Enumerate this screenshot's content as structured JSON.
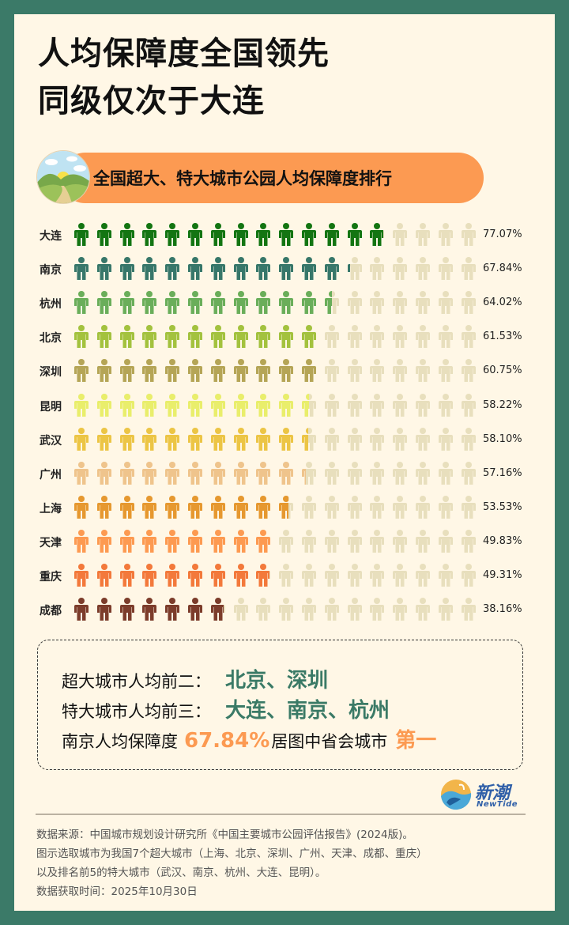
{
  "colors": {
    "frame": "#3b7a68",
    "background": "#fff7e6",
    "accent_orange": "#fc9a52",
    "accent_green": "#3a7a66",
    "empty_icon": "#e8dfbd"
  },
  "title": {
    "line1": "人均保障度全国领先",
    "line2": "同级仅次于大连"
  },
  "section_header": {
    "text": "全国超大、特大城市公园人均保障度排行",
    "badge_icon": "landscape-illustration-icon"
  },
  "chart_data": {
    "type": "pictogram-bar",
    "title": "全国超大、特大城市公园人均保障度排行",
    "icon": "person-icon",
    "icons_per_row": 18,
    "unit": "%",
    "xlim": [
      0,
      100
    ],
    "categories": [
      "大连",
      "南京",
      "杭州",
      "北京",
      "深圳",
      "昆明",
      "武汉",
      "广州",
      "上海",
      "天津",
      "重庆",
      "成都"
    ],
    "values": [
      77.07,
      67.84,
      64.02,
      61.53,
      60.75,
      58.22,
      58.1,
      57.16,
      53.53,
      49.83,
      49.31,
      38.16
    ],
    "labels": [
      "77.07%",
      "67.84%",
      "64.02%",
      "61.53%",
      "60.75%",
      "58.22%",
      "58.10%",
      "57.16%",
      "53.53%",
      "49.83%",
      "49.31%",
      "38.16%"
    ],
    "row_colors": [
      "#137512",
      "#37776a",
      "#6aae5a",
      "#a3c23e",
      "#b5a556",
      "#e9ee6b",
      "#ecc545",
      "#efc48c",
      "#e6982f",
      "#fd9a51",
      "#f3793b",
      "#7c3c2b"
    ]
  },
  "summary": {
    "line1_label": "超大城市人均前二：",
    "line1_value": "北京、深圳",
    "line2_label": "特大城市人均前三：",
    "line2_value": "大连、南京、杭州",
    "line3_prefix": "南京人均保障度",
    "line3_value": "67.84%",
    "line3_middle": "居图中省会城市",
    "line3_suffix": "第一"
  },
  "logo": {
    "name": "新潮",
    "subtitle": "NewTide",
    "icon": "wave-logo-icon"
  },
  "footer": {
    "line1": "数据来源：中国城市规划设计研究所《中国主要城市公园评估报告》(2024版)。",
    "line2": "图示选取城市为我国7个超大城市（上海、北京、深圳、广州、天津、成都、重庆）",
    "line3": "以及排名前5的特大城市（武汉、南京、杭州、大连、昆明）。",
    "line4": "数据获取时间：2025年10月30日"
  }
}
